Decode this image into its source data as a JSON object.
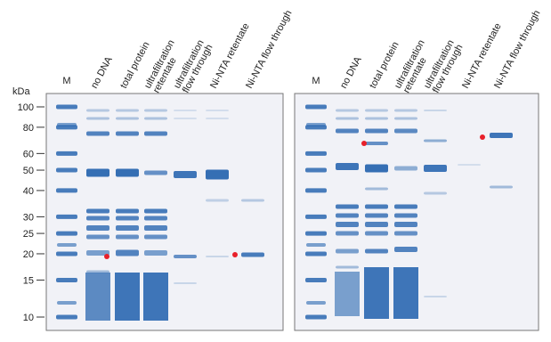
{
  "kda_axis": {
    "title": "kDa",
    "ticks": [
      100,
      80,
      60,
      50,
      40,
      30,
      25,
      20,
      15,
      10
    ]
  },
  "gels": [
    {
      "lanes": [
        {
          "lines": [
            "M"
          ]
        },
        {
          "lines": [
            "no DNA"
          ]
        },
        {
          "lines": [
            "total protein"
          ]
        },
        {
          "lines": [
            "ultrafiltration",
            "retentate"
          ]
        },
        {
          "lines": [
            "ultrafiltration",
            "flow through"
          ]
        },
        {
          "lines": [
            "Ni-NTA retentate"
          ]
        },
        {
          "lines": [
            "Ni-NTA flow through"
          ]
        }
      ]
    },
    {
      "lanes": [
        {
          "lines": [
            "M"
          ]
        },
        {
          "lines": [
            "no DNA"
          ]
        },
        {
          "lines": [
            "total protein"
          ]
        },
        {
          "lines": [
            "ultrafiltration",
            "retentate"
          ]
        },
        {
          "lines": [
            "ultrafiltration",
            "flow through"
          ]
        },
        {
          "lines": [
            "Ni-NTA retentate"
          ]
        },
        {
          "lines": [
            "Ni-NTA flow through"
          ]
        }
      ]
    }
  ]
}
